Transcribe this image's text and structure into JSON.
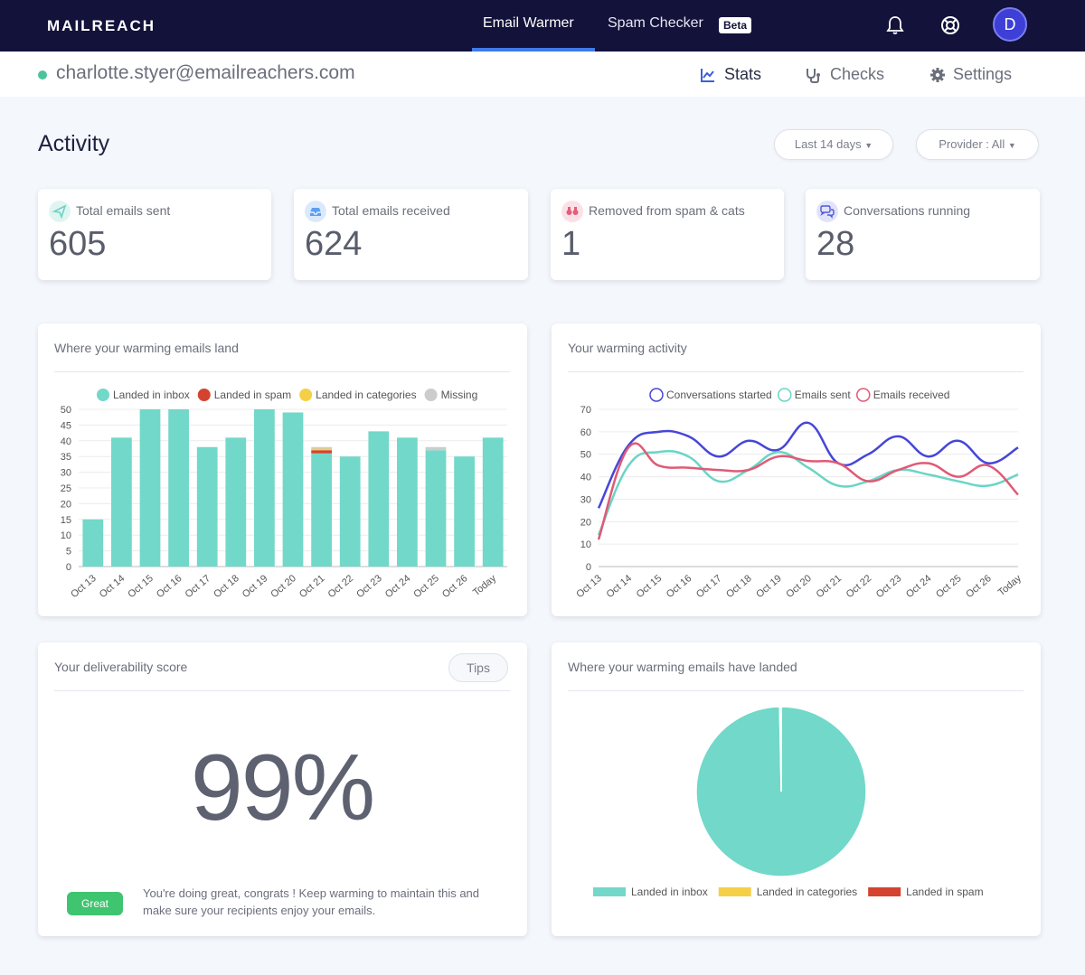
{
  "brand": {
    "name": "MAILREACH"
  },
  "topnav": {
    "tabs": [
      {
        "label": "Email Warmer",
        "active": true
      },
      {
        "label": "Spam Checker",
        "active": false
      }
    ],
    "beta_badge": "Beta",
    "avatar_initial": "D"
  },
  "account": {
    "email": "charlotte.styer@emailreachers.com",
    "status_color": "#4cc49b"
  },
  "subnav": {
    "items": [
      {
        "label": "Stats",
        "icon": "chart-line-icon",
        "active": true
      },
      {
        "label": "Checks",
        "icon": "stethoscope-icon",
        "active": false
      },
      {
        "label": "Settings",
        "icon": "gear-icon",
        "active": false
      }
    ]
  },
  "page": {
    "title": "Activity",
    "filters": {
      "range": "Last 14 days",
      "provider": "Provider : All"
    }
  },
  "stats": [
    {
      "label": "Total emails sent",
      "value": "605",
      "icon": "paper-plane-icon",
      "icon_color": "#6fd3c1"
    },
    {
      "label": "Total emails received",
      "value": "624",
      "icon": "inbox-icon",
      "icon_color": "#5b9ff0"
    },
    {
      "label": "Removed from spam & cats",
      "value": "1",
      "icon": "binoculars-icon",
      "icon_color": "#e0607a"
    },
    {
      "label": "Conversations running",
      "value": "28",
      "icon": "chat-icon",
      "icon_color": "#4f5ad8"
    }
  ],
  "panels": {
    "land_title": "Where your warming emails land",
    "activity_title": "Your warming activity",
    "score_title": "Your deliverability score",
    "pie_title": "Where your warming emails have landed",
    "tips_label": "Tips",
    "score_value": "99%",
    "score_badge": "Great",
    "score_message": "You're doing great, congrats ! Keep warming to maintain this and make sure your recipients enjoy your emails."
  },
  "colors": {
    "inbox": "#72d8c9",
    "spam": "#d4432f",
    "categories": "#f5d047",
    "missing": "#cccccc",
    "conversations": "#4646d8",
    "sent": "#6ad5c5",
    "received": "#e05a75"
  },
  "chart_data": [
    {
      "type": "bar",
      "title": "Where your warming emails land",
      "stacked": true,
      "categories": [
        "Oct 13",
        "Oct 14",
        "Oct 15",
        "Oct 16",
        "Oct 17",
        "Oct 18",
        "Oct 19",
        "Oct 20",
        "Oct 21",
        "Oct 22",
        "Oct 23",
        "Oct 24",
        "Oct 25",
        "Oct 26",
        "Today"
      ],
      "series": [
        {
          "name": "Landed in inbox",
          "values": [
            15,
            41,
            50,
            50,
            38,
            41,
            50,
            49,
            36,
            35,
            43,
            41,
            37,
            35,
            41
          ]
        },
        {
          "name": "Landed in spam",
          "values": [
            0,
            0,
            0,
            0,
            0,
            0,
            0,
            0,
            1,
            0,
            0,
            0,
            0,
            0,
            0
          ]
        },
        {
          "name": "Landed in categories",
          "values": [
            0,
            0,
            0,
            0,
            0,
            0,
            0,
            0,
            0.5,
            0,
            0,
            0,
            0,
            0,
            0
          ]
        },
        {
          "name": "Missing",
          "values": [
            0,
            0,
            0,
            0,
            0,
            0,
            0,
            0,
            0.5,
            0,
            0,
            0,
            1,
            0,
            0
          ]
        }
      ],
      "yticks": [
        0,
        5,
        10,
        15,
        20,
        25,
        30,
        35,
        40,
        45,
        50
      ],
      "ylim": [
        0,
        50
      ]
    },
    {
      "type": "line",
      "title": "Your warming activity",
      "categories": [
        "Oct 13",
        "Oct 14",
        "Oct 15",
        "Oct 16",
        "Oct 17",
        "Oct 18",
        "Oct 19",
        "Oct 20",
        "Oct 21",
        "Oct 22",
        "Oct 23",
        "Oct 24",
        "Oct 25",
        "Oct 26",
        "Today"
      ],
      "series": [
        {
          "name": "Conversations started",
          "values": [
            26,
            54,
            60,
            58,
            49,
            56,
            52,
            64,
            46,
            50,
            58,
            49,
            56,
            46,
            53
          ]
        },
        {
          "name": "Emails sent",
          "values": [
            14,
            45,
            51,
            49,
            38,
            43,
            51,
            44,
            36,
            38,
            43,
            41,
            38,
            36,
            41
          ]
        },
        {
          "name": "Emails received",
          "values": [
            12,
            53,
            45,
            44,
            43,
            43,
            49,
            47,
            46,
            38,
            43,
            46,
            40,
            45,
            32
          ]
        }
      ],
      "yticks": [
        0,
        10,
        20,
        30,
        40,
        50,
        60,
        70
      ],
      "ylim": [
        0,
        70
      ]
    },
    {
      "type": "pie",
      "title": "Where your warming emails have landed",
      "series": [
        {
          "name": "Landed in inbox",
          "value": 99.7
        },
        {
          "name": "Landed in categories",
          "value": 0.1
        },
        {
          "name": "Landed in spam",
          "value": 0.2
        }
      ]
    }
  ]
}
